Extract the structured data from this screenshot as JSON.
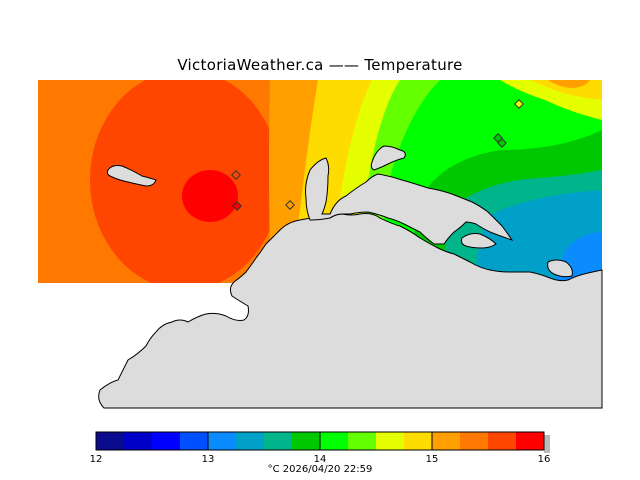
{
  "header": {
    "title": "VictoriaWeather.ca  —— Temperature"
  },
  "legend": {
    "ticks": [
      "12",
      "13",
      "14",
      "15",
      "16"
    ],
    "colors": [
      "#0a0a8c",
      "#0000c8",
      "#0000ff",
      "#0050ff",
      "#0a8cff",
      "#00a0c8",
      "#00b48c",
      "#00c800",
      "#00ff00",
      "#64ff00",
      "#e6ff00",
      "#ffdc00",
      "#ffa000",
      "#ff7800",
      "#ff4600",
      "#ff0000"
    ],
    "footer": "°C  2026/04/20 22:59"
  },
  "map": {
    "land_color": "#dcdcdc",
    "stations": [
      "station-1",
      "station-2",
      "station-3",
      "station-4",
      "station-5",
      "station-6"
    ]
  }
}
